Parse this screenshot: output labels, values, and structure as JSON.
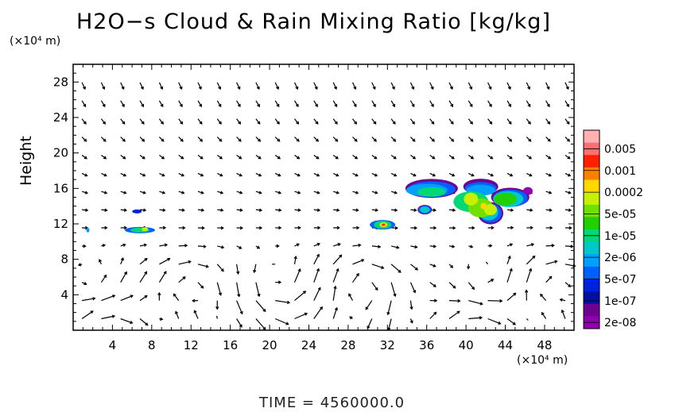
{
  "chart_data": {
    "type": "heatmap",
    "title": "H2O−s Cloud & Rain Mixing Ratio [kg/kg]",
    "ylabel": "Height",
    "x_unit": "(×10⁴ m)",
    "y_unit": "(×10⁴ m)",
    "footer": "TIME = 4560000.0",
    "xlim": [
      0,
      51
    ],
    "ylim": [
      0,
      30
    ],
    "x_ticks": [
      "4",
      "8",
      "12",
      "16",
      "20",
      "24",
      "28",
      "32",
      "36",
      "40",
      "44",
      "48"
    ],
    "y_ticks": [
      "4",
      "8",
      "12",
      "16",
      "20",
      "24",
      "28"
    ],
    "grid": false,
    "overlay": "wind vectors",
    "colorbar": {
      "placement": "right",
      "labels": [
        "0.005",
        "0.001",
        "0.0002",
        "5e-05",
        "1e-05",
        "2e-06",
        "5e-07",
        "1e-07",
        "2e-08"
      ],
      "colors": [
        "#ffb0b0",
        "#ff7070",
        "#ff2000",
        "#ff8000",
        "#ffd800",
        "#c8f000",
        "#70e000",
        "#20d000",
        "#00d878",
        "#00c8c8",
        "#00a0ff",
        "#0060ff",
        "#0020e0",
        "#0010a0",
        "#700090",
        "#9000b0"
      ]
    },
    "cloud_regions": [
      {
        "x_center": 1.5,
        "y_center": 11.3,
        "max_level": "2e-06"
      },
      {
        "x_center": 6.5,
        "y_center": 13.4,
        "max_level": "1e-07"
      },
      {
        "x_center": 6.8,
        "y_center": 11.3,
        "max_level": "5e-05"
      },
      {
        "x_center": 31.5,
        "y_center": 11.9,
        "max_level": "0.0002"
      },
      {
        "x_center": 38.0,
        "y_center": 15.5,
        "max_level": "1e-05"
      },
      {
        "x_center": 42.0,
        "y_center": 14.0,
        "max_level": "5e-05"
      }
    ]
  }
}
